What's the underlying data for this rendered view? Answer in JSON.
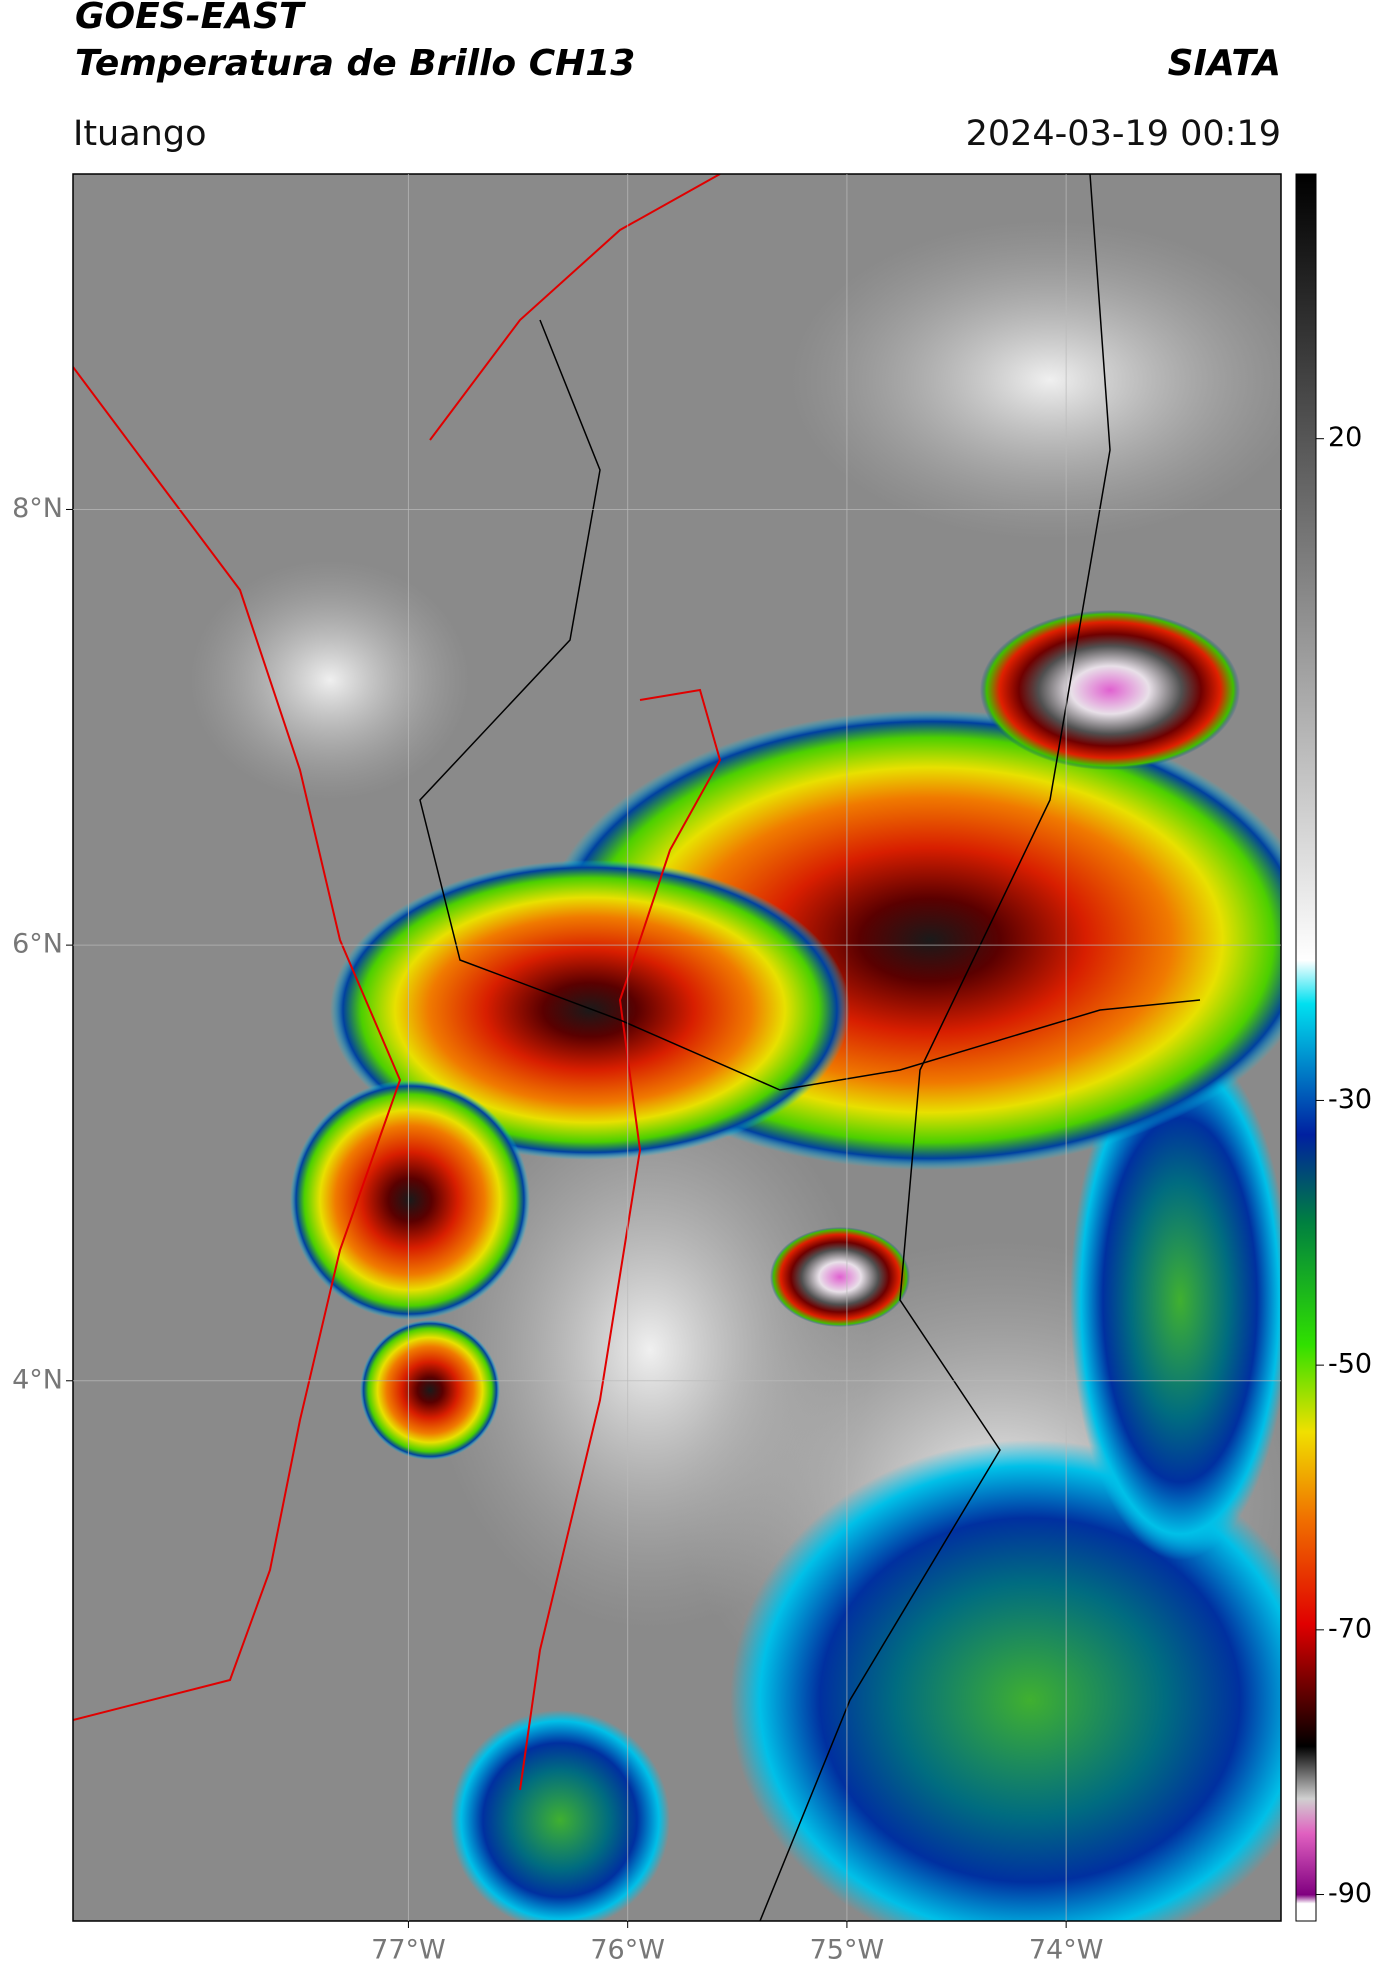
{
  "title": "GOES-EAST",
  "subtitle": "Temperatura de Brillo CH13",
  "source": "SIATA",
  "location": "Ituango",
  "datetime": "2024-03-19 00:19",
  "map": {
    "xlim": [
      -78.53,
      -73.02
    ],
    "ylim": [
      1.52,
      9.54
    ],
    "xticks": [
      {
        "value": -77,
        "label": "77°W"
      },
      {
        "value": -76,
        "label": "76°W"
      },
      {
        "value": -75,
        "label": "75°W"
      },
      {
        "value": -74,
        "label": "74°W"
      }
    ],
    "yticks": [
      {
        "value": 8,
        "label": "8°N"
      },
      {
        "value": 6,
        "label": "6°N"
      },
      {
        "value": 4,
        "label": "4°N"
      }
    ],
    "grid": true
  },
  "colorbar": {
    "lim": [
      -92,
      40
    ],
    "ticks": [
      20,
      -30,
      -50,
      -70,
      -90
    ]
  }
}
